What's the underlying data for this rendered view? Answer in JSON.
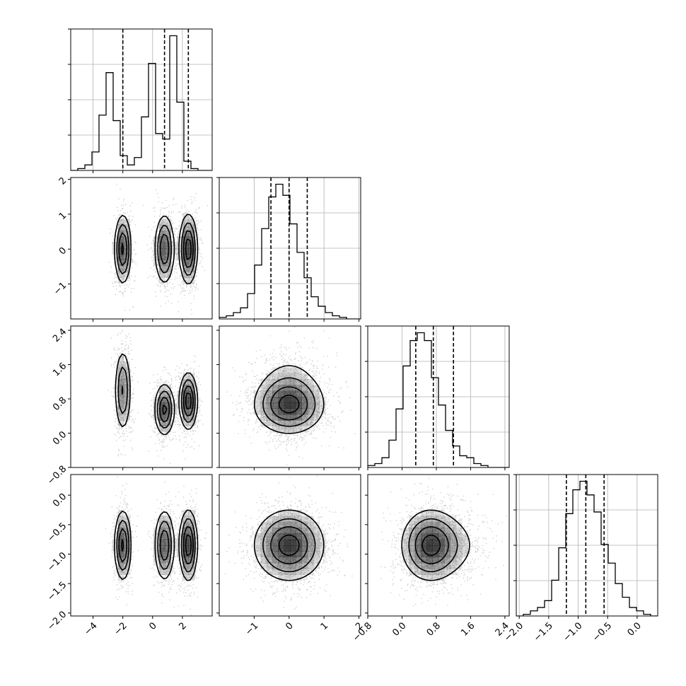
{
  "chart_data": {
    "type": "corner",
    "colors": {
      "contour": "#000000",
      "grid": "#b0b0b0",
      "points": "#9a9a9a",
      "density": "#000000"
    },
    "grid": true,
    "parameters": [
      {
        "range": [
          -5.5,
          4.0
        ],
        "ticks": [
          -4,
          -2,
          0,
          2
        ],
        "tick_labels": [
          "−4",
          "−2",
          "0",
          "2"
        ],
        "quantiles": [
          -2.0,
          0.8,
          2.4
        ]
      },
      {
        "range": [
          -2.0,
          2.05
        ],
        "ticks": [
          -1,
          0,
          1,
          2
        ],
        "tick_labels": [
          "−1",
          "0",
          "1",
          "2"
        ],
        "quantiles": [
          -0.52,
          0.0,
          0.52
        ]
      },
      {
        "range": [
          -0.8,
          2.5
        ],
        "ticks": [
          -0.8,
          0.0,
          0.8,
          1.6,
          2.4
        ],
        "tick_labels": [
          "−0.8",
          "0.0",
          "0.8",
          "1.6",
          "2.4"
        ],
        "quantiles": [
          0.32,
          0.73,
          1.2
        ]
      },
      {
        "range": [
          -2.05,
          0.35
        ],
        "ticks": [
          -2.0,
          -1.5,
          -1.0,
          -0.5,
          0.0
        ],
        "tick_labels": [
          "−2.0",
          "−1.5",
          "−1.0",
          "−0.5",
          "0.0"
        ],
        "quantiles": [
          -1.2,
          -0.87,
          -0.56
        ]
      }
    ],
    "histograms": [
      {
        "bin_start": -5.5,
        "bin_width": 0.475,
        "counts": [
          0,
          1,
          3,
          10,
          30,
          53,
          27,
          8,
          3,
          7,
          29,
          58,
          20,
          17,
          73,
          37,
          5,
          1,
          0,
          0
        ]
      },
      {
        "bin_start": -2.0,
        "bin_width": 0.2025,
        "counts": [
          1,
          2,
          4,
          7,
          16,
          34,
          57,
          77,
          85,
          78,
          60,
          42,
          26,
          14,
          8,
          4,
          2,
          1,
          0,
          0
        ]
      },
      {
        "bin_start": -0.8,
        "bin_width": 0.165,
        "counts": [
          1,
          2,
          5,
          14,
          30,
          52,
          65,
          69,
          65,
          46,
          32,
          19,
          11,
          6,
          5,
          2,
          1,
          0,
          0,
          0
        ]
      },
      {
        "bin_start": -2.05,
        "bin_width": 0.12,
        "counts": [
          0,
          1,
          3,
          5,
          9,
          21,
          40,
          60,
          74,
          79,
          71,
          61,
          42,
          31,
          19,
          11,
          5,
          3,
          1,
          0
        ]
      }
    ],
    "clusters": [
      {
        "mean": [
          -2.0,
          0.0,
          1.0,
          -0.85
        ],
        "sd": [
          0.28,
          0.5,
          0.5,
          0.3
        ],
        "weight": 0.3
      },
      {
        "mean": [
          0.8,
          0.0,
          0.55,
          -0.85
        ],
        "sd": [
          0.33,
          0.5,
          0.3,
          0.3
        ],
        "weight": 0.33
      },
      {
        "mean": [
          2.4,
          0.0,
          0.75,
          -0.85
        ],
        "sd": [
          0.3,
          0.5,
          0.33,
          0.3
        ],
        "weight": 0.37
      }
    ]
  }
}
